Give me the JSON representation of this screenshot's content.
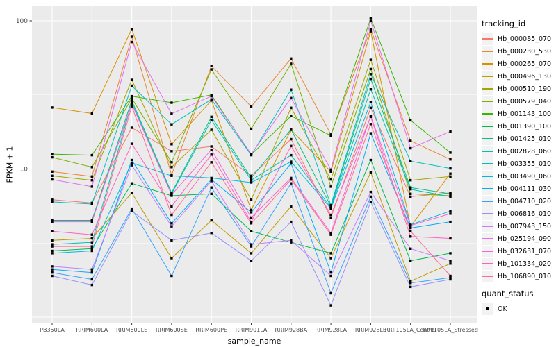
{
  "figure": {
    "panel": {
      "background": "#EBEBEB",
      "grid_color": "#FFFFFF"
    },
    "y_axis": {
      "title": "FPKM + 1",
      "tick_labels": [
        "100",
        "10"
      ],
      "tick_values": [
        100,
        10
      ],
      "major_grid_values": [
        1,
        10,
        100
      ],
      "minor_grid_values": [
        3.162,
        31.623
      ],
      "tick_color": "#333333",
      "label_color": "#4D4D4D"
    },
    "x_axis": {
      "title": "sample_name",
      "tick_color": "#333333",
      "label_color": "#4D4D4D"
    }
  },
  "legend": {
    "tracking_title": "tracking_id",
    "quant_title": "quant_status",
    "key_background": "#F2F2F2",
    "quant_items": [
      {
        "label": "OK",
        "marker": "filled-black-square"
      }
    ]
  },
  "chart_data": {
    "type": "line",
    "title": "",
    "xlabel": "sample_name",
    "ylabel": "FPKM + 1",
    "y_scale": "log10",
    "y_domain": [
      0.92,
      125
    ],
    "y_ticks": [
      10,
      100
    ],
    "legend_position": "right",
    "marker": "filled-black-square",
    "marker_color": "#000000",
    "categories": [
      "PB350LA",
      "RRIM600LA",
      "RRIM600LE",
      "RRIM600SE",
      "RRIM600PE",
      "RRIM901LA",
      "RRIM928BA",
      "RRIM928LA",
      "RRIM928LE",
      "RRII105LA_Control",
      "RRII105LA_Stressed"
    ],
    "series": [
      {
        "name": "Hb_000085_070",
        "color": "#F8766D",
        "values": [
          6.2,
          5.9,
          19,
          13.2,
          14.2,
          9.0,
          15.9,
          4.7,
          25.9,
          6.5,
          6.9
        ]
      },
      {
        "name": "Hb_000230_530",
        "color": "#EA8331",
        "values": [
          9.6,
          8.9,
          78,
          9.1,
          49.5,
          26.4,
          55.7,
          17.1,
          88,
          15.5,
          11.6
        ]
      },
      {
        "name": "Hb_000265_070",
        "color": "#D89000",
        "values": [
          26,
          23.7,
          88,
          14.7,
          29,
          5.3,
          18.4,
          9.6,
          85,
          4.1,
          9.3
        ]
      },
      {
        "name": "Hb_000496_130",
        "color": "#C09B00",
        "values": [
          3.3,
          3.4,
          6.9,
          2.5,
          4.5,
          2.7,
          5.6,
          2.5,
          9.5,
          1.75,
          2.3
        ]
      },
      {
        "name": "Hb_000510_190",
        "color": "#A3A500",
        "values": [
          9.0,
          8.4,
          40,
          10.3,
          18.4,
          6.2,
          25.9,
          8.5,
          54.6,
          8.4,
          8.9
        ]
      },
      {
        "name": "Hb_000579_040",
        "color": "#7CAE00",
        "values": [
          12.0,
          10.3,
          30,
          11.1,
          47,
          18.7,
          51.3,
          7.6,
          47.3,
          6.8,
          6.6
        ]
      },
      {
        "name": "Hb_001143_100",
        "color": "#39B600",
        "values": [
          12.6,
          12.4,
          31,
          28,
          31.6,
          12.5,
          22.8,
          16.8,
          104,
          21.3,
          12.9
        ]
      },
      {
        "name": "Hb_001390_100",
        "color": "#00BB4E",
        "values": [
          2.8,
          2.9,
          8.0,
          6.6,
          6.8,
          3.8,
          3.2,
          2.7,
          11.5,
          2.4,
          2.7
        ]
      },
      {
        "name": "Hb_001425_010",
        "color": "#00C087",
        "values": [
          4.5,
          4.5,
          29,
          6.9,
          22.5,
          8.7,
          18.5,
          5.6,
          40.6,
          7.5,
          6.8
        ]
      },
      {
        "name": "Hb_002828_060",
        "color": "#00C0B2",
        "values": [
          3.1,
          3.2,
          28,
          6.8,
          21.4,
          8.4,
          12.4,
          5.5,
          34.5,
          7.3,
          6.5
        ]
      },
      {
        "name": "Hb_003355_010",
        "color": "#00BFC4",
        "values": [
          6.0,
          5.8,
          36.5,
          20,
          29.5,
          12.4,
          34.3,
          5.7,
          43.7,
          11.3,
          10.1
        ]
      },
      {
        "name": "Hb_003490_060",
        "color": "#00B8E5",
        "values": [
          2.7,
          2.8,
          11,
          9.0,
          8.7,
          8.1,
          11.2,
          5.4,
          28.3,
          4.2,
          5.2
        ]
      },
      {
        "name": "Hb_004111_030",
        "color": "#00ACFC",
        "values": [
          2.1,
          2.0,
          11.5,
          4.3,
          8.5,
          5.1,
          10.9,
          2.0,
          17.4,
          4.0,
          4.4
        ]
      },
      {
        "name": "Hb_004710_020",
        "color": "#35A2FF",
        "values": [
          2.0,
          1.8,
          5.4,
          1.9,
          7.5,
          3.0,
          8.0,
          1.45,
          6.5,
          1.7,
          1.85
        ]
      },
      {
        "name": "Hb_006816_010",
        "color": "#9590FF",
        "values": [
          1.9,
          1.65,
          5.2,
          3.3,
          3.7,
          2.4,
          4.4,
          1.2,
          6.0,
          1.6,
          1.8
        ]
      },
      {
        "name": "Hb_007943_150",
        "color": "#C77CFF",
        "values": [
          2.2,
          2.1,
          10.6,
          4.1,
          8.3,
          3.1,
          3.3,
          1.9,
          7.0,
          2.9,
          2.4
        ]
      },
      {
        "name": "Hb_025194_090",
        "color": "#E76BF3",
        "values": [
          8.5,
          7.6,
          72,
          23.6,
          31,
          12.6,
          30.1,
          9.9,
          100,
          13.8,
          17.9
        ]
      },
      {
        "name": "Hb_032631_070",
        "color": "#FA62DB",
        "values": [
          4.4,
          4.4,
          27.5,
          6.7,
          13.5,
          4.7,
          8.7,
          3.7,
          22.8,
          4.15,
          5.0
        ]
      },
      {
        "name": "Hb_101334_020",
        "color": "#FF61C3",
        "values": [
          3.8,
          3.6,
          14.8,
          5.6,
          12.5,
          4.4,
          14.3,
          4.9,
          22.5,
          3.5,
          3.4
        ]
      },
      {
        "name": "Hb_106890_010",
        "color": "#FF6A98",
        "values": [
          3.0,
          3.0,
          26.5,
          4.9,
          11.1,
          4.3,
          8.5,
          3.6,
          20.1,
          3.8,
          1.9
        ]
      }
    ]
  }
}
